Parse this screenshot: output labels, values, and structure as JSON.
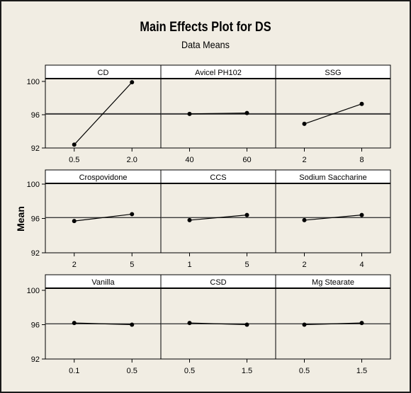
{
  "chart_data": {
    "type": "line",
    "title": "Main Effects Plot for DS",
    "subtitle": "Data Means",
    "ylabel": "Mean",
    "ylim": [
      92,
      101.2
    ],
    "yticks": [
      92,
      96,
      100
    ],
    "grand_mean": 96.1,
    "grid": false,
    "panels": [
      {
        "factor": "CD",
        "levels": [
          "0.5",
          "2.0"
        ],
        "values": [
          92.4,
          99.9
        ]
      },
      {
        "factor": "Avicel PH102",
        "levels": [
          "40",
          "60"
        ],
        "values": [
          96.1,
          96.2
        ]
      },
      {
        "factor": "SSG",
        "levels": [
          "2",
          "8"
        ],
        "values": [
          94.9,
          97.3
        ]
      },
      {
        "factor": "Crospovidone",
        "levels": [
          "2",
          "5"
        ],
        "values": [
          95.7,
          96.5
        ]
      },
      {
        "factor": "CCS",
        "levels": [
          "1",
          "5"
        ],
        "values": [
          95.8,
          96.4
        ]
      },
      {
        "factor": "Sodium Saccharine",
        "levels": [
          "2",
          "4"
        ],
        "values": [
          95.8,
          96.4
        ]
      },
      {
        "factor": "Vanilla",
        "levels": [
          "0.1",
          "0.5"
        ],
        "values": [
          96.2,
          96.0
        ]
      },
      {
        "factor": "CSD",
        "levels": [
          "0.5",
          "1.5"
        ],
        "values": [
          96.2,
          96.0
        ]
      },
      {
        "factor": "Mg Stearate",
        "levels": [
          "0.5",
          "1.5"
        ],
        "values": [
          96.0,
          96.2
        ]
      }
    ]
  }
}
